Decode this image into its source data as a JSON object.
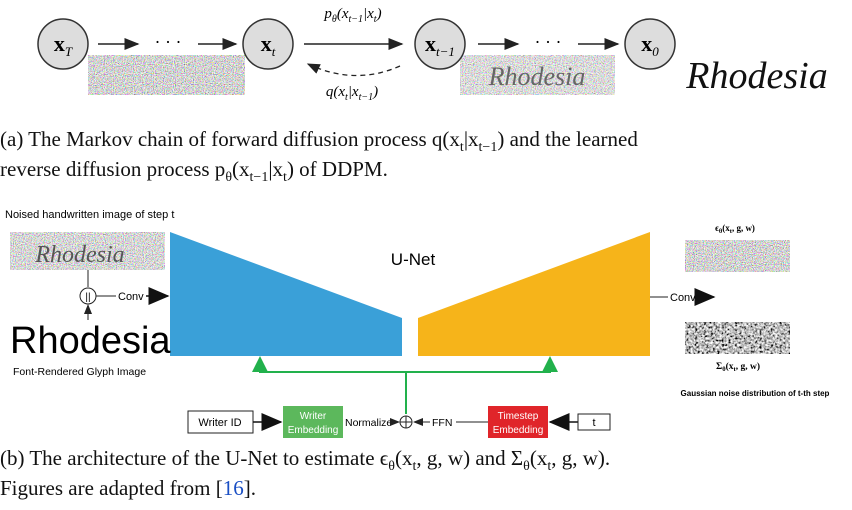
{
  "part_a": {
    "nodes": [
      {
        "symbol": "x",
        "subscript": "T"
      },
      {
        "symbol": "x",
        "subscript": "t"
      },
      {
        "symbol": "x",
        "subscript": "t−1"
      },
      {
        "symbol": "x",
        "subscript": "0"
      }
    ],
    "dots": "· · ·",
    "forward_label": [
      "p",
      "θ",
      "(x",
      "t−1",
      "|x",
      "t",
      ")"
    ],
    "reverse_label": [
      "q(x",
      "t",
      "|x",
      "t−1",
      ")"
    ],
    "handwriting": "Rhodesia",
    "caption": [
      [
        "(a) The Markov chain of forward diffusion process q(x",
        "t",
        "|x",
        "t−1",
        ") and the learned"
      ],
      [
        "reverse diffusion process p",
        "θ",
        "(x",
        "t−1",
        "|x",
        "t",
        ") of DDPM."
      ]
    ]
  },
  "part_b": {
    "input_label": "Noised handwritten image of step t",
    "concat_symbol": "||",
    "conv_left": "Conv",
    "unet": "U-Net",
    "glyph": "Rhodesia",
    "glyph_label": "Font-Rendered Glyph Image",
    "output_mean": [
      "ϵ",
      "θ",
      "(x",
      "t",
      ", g, w)"
    ],
    "conv_right": "Conv",
    "output_var": [
      "Σ",
      "θ",
      "(x",
      "t",
      ", g, w)"
    ],
    "output_label": "Gaussian noise distribution of t-th step",
    "writer_id": "Writer ID",
    "writer_embedding": [
      "Writer",
      "Embedding"
    ],
    "normalize": "Normalize",
    "ffn": "FFN",
    "timestep_embedding": [
      "Timestep",
      "Embedding"
    ],
    "t": "t",
    "caption": [
      [
        "(b) The architecture of the U-Net to estimate ϵ",
        "θ",
        "(x",
        "t",
        ", g, w) and Σ",
        "θ",
        "(x",
        "t",
        ", g, w)."
      ]
    ],
    "caption_last": [
      "Figures are adapted from [",
      "16",
      "]."
    ]
  }
}
